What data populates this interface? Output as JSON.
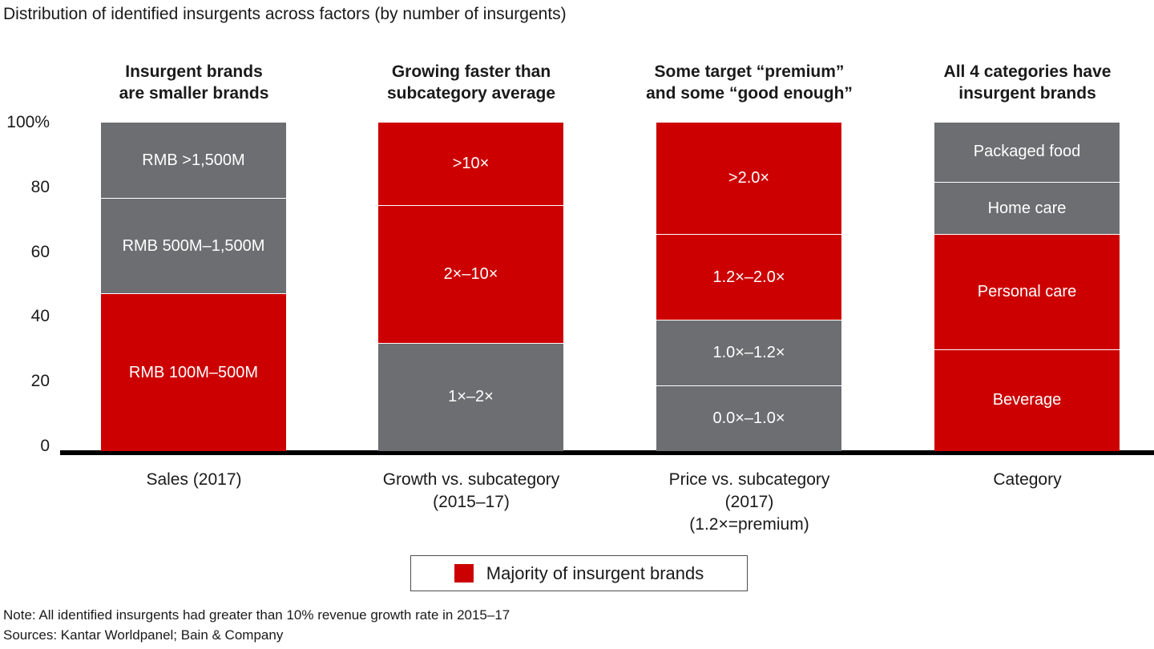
{
  "colors": {
    "red": "#CC0000",
    "gray": "#6D6E71",
    "axis": "#000000",
    "legend_border": "#4D4D4D"
  },
  "chart_data": {
    "type": "bar",
    "stacked": true,
    "title": "Distribution of identified insurgents across factors (by number of insurgents)",
    "ylim": [
      0,
      100
    ],
    "y_ticks": [
      "100%",
      "80",
      "60",
      "40",
      "20",
      "0"
    ],
    "grid": false,
    "legend_position": "bottom",
    "columns": [
      {
        "header": [
          "Insurgent brands",
          "are smaller brands"
        ],
        "x_label": [
          "Sales (2017)"
        ],
        "segments": [
          {
            "label": "RMB >1,500M",
            "value": 23,
            "color": "gray"
          },
          {
            "label": "RMB 500M–1,500M",
            "value": 29,
            "color": "gray"
          },
          {
            "label": "RMB 100M–500M",
            "value": 48,
            "color": "red"
          }
        ]
      },
      {
        "header": [
          "Growing faster than",
          "subcategory average"
        ],
        "x_label": [
          "Growth vs. subcategory",
          "(2015–17)"
        ],
        "segments": [
          {
            "label": ">10×",
            "value": 25,
            "color": "red"
          },
          {
            "label": "2×–10×",
            "value": 42,
            "color": "red"
          },
          {
            "label": "1×–2×",
            "value": 33,
            "color": "gray"
          }
        ]
      },
      {
        "header": [
          "Some target “premium”",
          "and some “good enough”"
        ],
        "x_label": [
          "Price vs. subcategory",
          "(2017)",
          "(1.2×=premium)"
        ],
        "segments": [
          {
            "label": ">2.0×",
            "value": 34,
            "color": "red"
          },
          {
            "label": "1.2×–2.0×",
            "value": 26,
            "color": "red"
          },
          {
            "label": "1.0×–1.2×",
            "value": 20,
            "color": "gray"
          },
          {
            "label": "0.0×–1.0×",
            "value": 20,
            "color": "gray"
          }
        ]
      },
      {
        "header": [
          "All 4 categories have",
          "insurgent brands"
        ],
        "x_label": [
          "Category"
        ],
        "segments": [
          {
            "label": "Packaged food",
            "value": 18,
            "color": "gray"
          },
          {
            "label": "Home care",
            "value": 16,
            "color": "gray"
          },
          {
            "label": "Personal care",
            "value": 35,
            "color": "red"
          },
          {
            "label": "Beverage",
            "value": 31,
            "color": "red"
          }
        ]
      }
    ]
  },
  "legend": {
    "label": "Majority of insurgent brands",
    "swatch_color": "#CC0000"
  },
  "footnotes": {
    "note": "Note: All identified insurgents had greater than 10% revenue growth rate in 2015–17",
    "sources": "Sources: Kantar Worldpanel; Bain & Company"
  }
}
